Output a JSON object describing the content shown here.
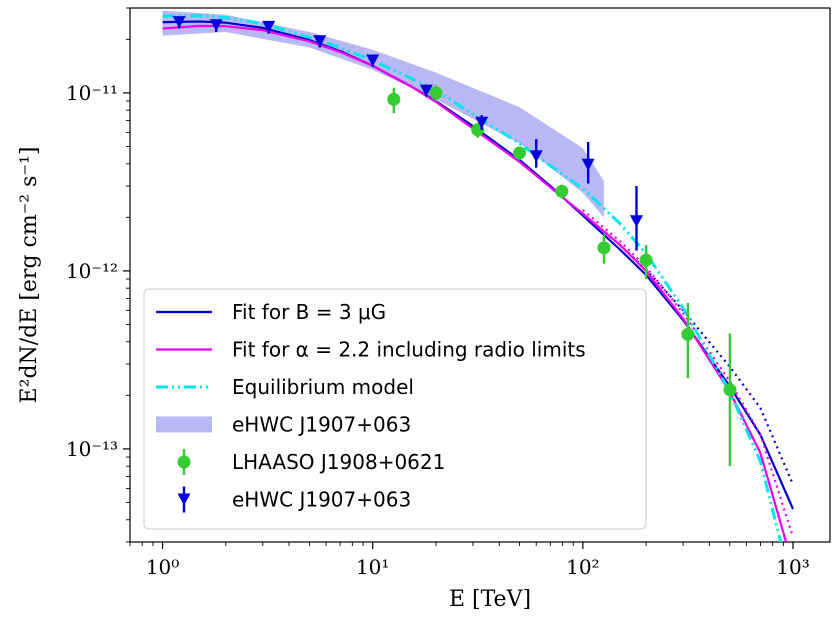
{
  "chart_data": {
    "type": "line",
    "xscale": "log",
    "yscale": "log",
    "xlim": [
      0.7,
      1500
    ],
    "ylim": [
      3e-14,
      3e-11
    ],
    "grid": false,
    "legend_placement": "lower-left",
    "xlabel": "E [TeV]",
    "ylabel": "E²dN/dE [erg cm⁻² s⁻¹]",
    "x_tick_labels": [
      "10⁰",
      "10¹",
      "10²",
      "10³"
    ],
    "x_tick_values": [
      1,
      10,
      100,
      1000
    ],
    "y_tick_labels": [
      "10⁻¹¹",
      "10⁻¹²",
      "10⁻¹³"
    ],
    "y_tick_values": [
      1e-11,
      1e-12,
      1e-13
    ],
    "colors": {
      "fit_b": "#0000cc",
      "fit_alpha": "#ee00ee",
      "equilibrium": "#00e5ee",
      "ehwc_band": "#9a9af0",
      "lhaaso": "#33cc33",
      "ehwc_points": "#0000dd"
    },
    "legend": [
      {
        "label": "Fit for B = 3 μG",
        "style": "solid",
        "color_key": "fit_b"
      },
      {
        "label": "Fit for α = 2.2 including radio limits",
        "style": "solid",
        "color_key": "fit_alpha"
      },
      {
        "label": "Equilibrium model",
        "style": "dashdotdot",
        "color_key": "equilibrium"
      },
      {
        "label": "eHWC J1907+063",
        "style": "band",
        "color_key": "ehwc_band"
      },
      {
        "label": "LHAASO J1908+0621",
        "style": "point-error",
        "color_key": "lhaaso"
      },
      {
        "label": "eHWC J1907+063",
        "style": "downward-limit",
        "color_key": "ehwc_points"
      }
    ],
    "series": [
      {
        "name": "Fit for B = 3 μG",
        "color_key": "fit_b",
        "style": "solid",
        "x": [
          1,
          1.5,
          2,
          3,
          5,
          7,
          10,
          15,
          20,
          30,
          50,
          70,
          100,
          150,
          200,
          300,
          500,
          700,
          1000
        ],
        "y": [
          2.5e-11,
          2.52e-11,
          2.48e-11,
          2.32e-11,
          1.98e-11,
          1.72e-11,
          1.42e-11,
          1.1e-11,
          9e-12,
          6.5e-12,
          4.2e-12,
          3e-12,
          2.05e-12,
          1.32e-12,
          9.5e-13,
          5.3e-13,
          2.25e-13,
          1.2e-13,
          4.6e-14
        ]
      },
      {
        "name": "Fit for B = 3 μG (dotted)",
        "color_key": "fit_b",
        "style": "dotted",
        "x": [
          100,
          150,
          200,
          300,
          500,
          700,
          1000
        ],
        "y": [
          2.1e-12,
          1.4e-12,
          1.02e-12,
          6e-13,
          2.9e-13,
          1.7e-13,
          6.3e-14
        ]
      },
      {
        "name": "Fit for α = 2.2 including radio limits",
        "color_key": "fit_alpha",
        "style": "solid",
        "x": [
          1,
          1.5,
          2,
          3,
          5,
          7,
          10,
          15,
          20,
          30,
          50,
          70,
          100,
          150,
          200,
          300,
          500,
          700,
          1000
        ],
        "y": [
          2.3e-11,
          2.38e-11,
          2.37e-11,
          2.25e-11,
          1.95e-11,
          1.7e-11,
          1.42e-11,
          1.1e-11,
          8.9e-12,
          6.3e-12,
          4.1e-12,
          2.95e-12,
          2.1e-12,
          1.4e-12,
          1e-12,
          5.4e-13,
          2.1e-13,
          9.5e-14,
          2.2e-14
        ]
      },
      {
        "name": "Fit for α = 2.2 including radio limits (dotted)",
        "color_key": "fit_alpha",
        "style": "dotted",
        "x": [
          100,
          150,
          200,
          300,
          500,
          700,
          1000
        ],
        "y": [
          2.2e-12,
          1.47e-12,
          1.05e-12,
          5.8e-13,
          2.4e-13,
          1.2e-13,
          3.2e-14
        ]
      },
      {
        "name": "Equilibrium model",
        "color_key": "equilibrium",
        "style": "dashdotdot",
        "x": [
          1,
          1.5,
          2,
          3,
          5,
          7,
          10,
          15,
          20,
          30,
          50,
          70,
          100,
          150,
          200,
          300,
          500,
          700,
          1000
        ],
        "y": [
          2.7e-11,
          2.72e-11,
          2.65e-11,
          2.45e-11,
          2.05e-11,
          1.8e-11,
          1.52e-11,
          1.22e-11,
          1.03e-11,
          7.6e-12,
          5.2e-12,
          3.9e-12,
          2.9e-12,
          1.85e-12,
          1.25e-12,
          6.2e-13,
          2.1e-13,
          8.5e-14,
          1.6e-14
        ]
      }
    ],
    "band": {
      "name": "eHWC J1907+063",
      "color_key": "ehwc_band",
      "x": [
        1,
        2,
        5,
        10,
        20,
        50,
        100,
        126
      ],
      "y_low": [
        2.1e-11,
        2.2e-11,
        1.8e-11,
        1.35e-11,
        9.2e-12,
        5.2e-12,
        2.75e-12,
        2e-12
      ],
      "y_high": [
        2.9e-11,
        2.75e-11,
        2.2e-11,
        1.75e-11,
        1.3e-11,
        8.3e-12,
        4.9e-12,
        3.2e-12
      ]
    },
    "lhaaso_points": {
      "name": "LHAASO J1908+0621",
      "color_key": "lhaaso",
      "x": [
        12.6,
        20,
        31.6,
        50,
        79.4,
        126,
        200,
        316,
        501
      ],
      "y": [
        9.2e-12,
        1e-11,
        6.2e-12,
        4.6e-12,
        2.8e-12,
        1.35e-12,
        1.15e-12,
        4.4e-13,
        2.15e-13
      ],
      "y_err_low": [
        1.5e-12,
        1e-12,
        6e-13,
        4e-13,
        2.5e-13,
        2.5e-13,
        2.5e-13,
        1.9e-13,
        1.35e-13
      ],
      "y_err_high": [
        1.5e-12,
        1e-12,
        6e-13,
        4e-13,
        2.5e-13,
        2.5e-13,
        2.5e-13,
        2.2e-13,
        2.3e-13
      ]
    },
    "ehwc_points": {
      "name": "eHWC J1907+063",
      "color_key": "ehwc_points",
      "x": [
        1.2,
        1.8,
        3.2,
        5.6,
        10,
        18,
        33,
        60,
        106,
        180
      ],
      "y": [
        2.5e-11,
        2.4e-11,
        2.35e-11,
        1.95e-11,
        1.52e-11,
        1.03e-11,
        6.8e-12,
        4.4e-12,
        3.95e-12,
        1.9e-12
      ],
      "y_up": [
        2.6e-11,
        2.5e-11,
        2.45e-11,
        2.03e-11,
        1.6e-11,
        1.1e-11,
        7.5e-12,
        5.5e-12,
        5.3e-12,
        3e-12
      ],
      "arrow_down_to": [
        2.3e-11,
        2.2e-11,
        2.15e-11,
        1.8e-11,
        1.4e-11,
        9.5e-12,
        6.2e-12,
        3.8e-12,
        3.1e-12,
        1.3e-12
      ]
    }
  }
}
